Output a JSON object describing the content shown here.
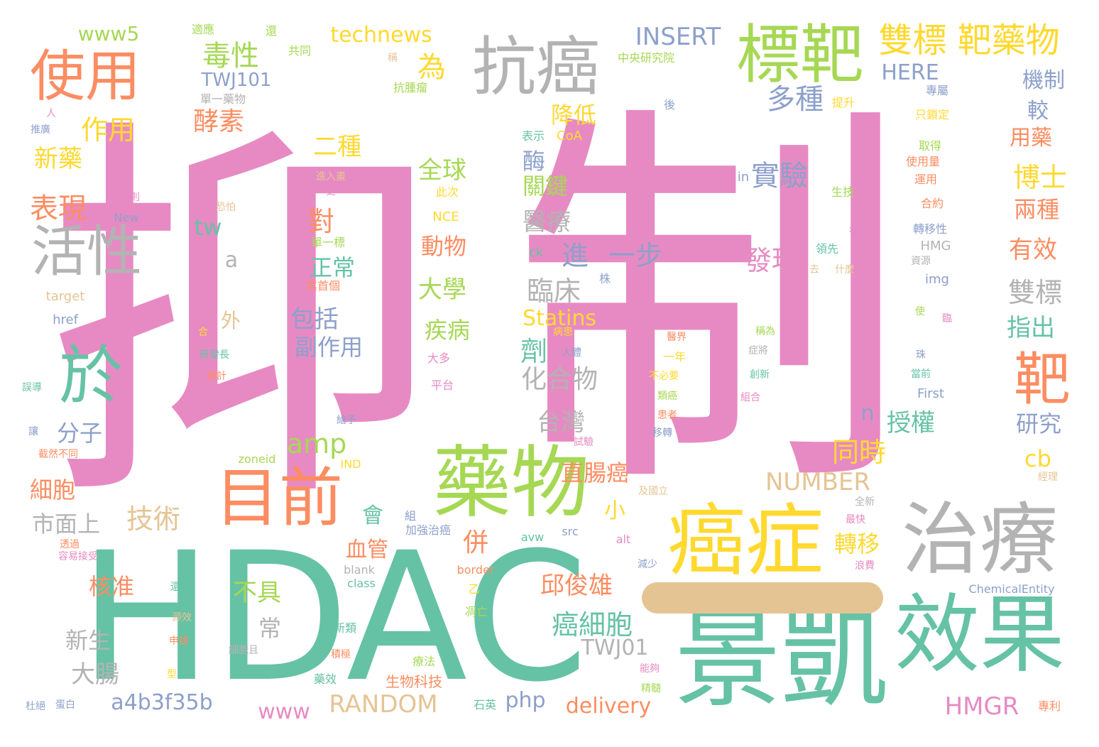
{
  "palette": {
    "teal": "#66c2a5",
    "orange": "#fc8d62",
    "periwinkle": "#8da0cb",
    "pink": "#e78ac3",
    "lime": "#a6d854",
    "yellow": "#ffd92f",
    "tan": "#e5c494",
    "gray": "#b3b3b3"
  },
  "words": {
    "yi": "抑",
    "zhi": "制",
    "hdac": "HDAC",
    "jingkai": "景凱",
    "xiaoguo": "效果",
    "aizheng": "癌症",
    "zhiliao": "治療",
    "yaowu": "藥物",
    "mubiao": "目前",
    "kangai": "抗癌",
    "biaoba": "標靶",
    "shiyong": "使用",
    "huoxing": "活性",
    "yu": "於",
    "ba": "靶",
    "shuangbiao_bayaowu": "雙標 靶藥物",
    "dushu": "毒性",
    "wei": "為",
    "technews": "technews",
    "www5": "www5",
    "insert": "INSERT",
    "twj101": "TWJ101",
    "here": "HERE",
    "duozhong": "多種",
    "jizhi": "機制",
    "zuoyong": "作用",
    "meisu": "酵素",
    "jiangdi": "降低",
    "jiao": "較",
    "xinyao": "新藥",
    "erzhong": "二種",
    "shiyan": "實驗",
    "yongyao": "用藥",
    "boshi": "博士",
    "biaoxian": "表現",
    "quanqiu": "全球",
    "mei": "酶",
    "guanjian": "關鍵",
    "liangzhong": "兩種",
    "tw": "tw",
    "dui": "對",
    "yiliao": "醫療",
    "youxiao": "有效",
    "fazhan": "發現",
    "jin": "進",
    "yibu": "一步",
    "dongwu": "動物",
    "zhengchang": "正常",
    "a": "a",
    "linchuang": "臨床",
    "shuangbiao": "雙標",
    "daxue": "大學",
    "baokuo": "包括",
    "statins": "Statins",
    "zhichu": "指出",
    "wai": "外",
    "jibing": "疾病",
    "ji": "劑",
    "fuzuoyong": "副作用",
    "huahewu": "化合物",
    "fenzi": "分子",
    "taiwan": "台灣",
    "n": "n",
    "shouquan": "授權",
    "yanjiu": "研究",
    "amp": "amp",
    "tongshi": "同時",
    "cb": "cb",
    "xibao": "細胞",
    "zhichangai": "直腸癌",
    "number": "NUMBER",
    "jishu": "技術",
    "xiao": "小",
    "shimianshang": "市面上",
    "hui": "會",
    "bing": "併",
    "xueguan": "血管",
    "zhuanyi": "轉移",
    "hezhun": "核准",
    "bujiu": "不具",
    "qiujunxiong": "邱俊雄",
    "aixibao": "癌細胞",
    "chang": "常",
    "xinsheng": "新生",
    "twj01": "TWJ01",
    "dachang": "大腸",
    "a4b3f35b": "a4b3f35b",
    "random": "RANDOM",
    "www": "www",
    "php": "php",
    "delivery": "delivery",
    "hmgr": "HMGR",
    "shiying": "適應",
    "huan": "還",
    "gongtong": "共同",
    "cheng": "稱",
    "kangzhongliu": "抗腫瘤",
    "danyi_yaowu": "單一藥物",
    "zhongyang": "中央研究院",
    "hou": "後",
    "tisheng": "提升",
    "zhuanshu": "專屬",
    "zhisuoding": "只鎖定",
    "ren": "人",
    "tuiguang": "推廣",
    "biaoshi": "表示",
    "coa": "CoA",
    "qude": "取得",
    "shiyongliang": "使用量",
    "jinrusheng": "進入畫",
    "fuhe": "符合",
    "geng": "更",
    "qianding": "簽定",
    "in": "in",
    "shengji": "生技",
    "yunyong": "運用",
    "heyue": "合約",
    "xibaoze": "細胞則",
    "cici": "此次",
    "kongpa": "恐怕",
    "new": "New",
    "nce": "NCE",
    "bei": "被",
    "zhuanyixing": "轉移性",
    "danyibiao": "單一標",
    "ck": "ck",
    "lingxian": "領先",
    "hmg": "HMG",
    "ziyuan": "資源",
    "qu": "去",
    "shenme": "什麼",
    "qishouge": "其首個",
    "zhu": "株",
    "img": "img",
    "target": "target",
    "shi": "使",
    "lin": "臨",
    "href": "href",
    "he": "合",
    "huanzhe_yi": "病患",
    "renti": "人體",
    "yijie": "醫界",
    "chengwei": "稱為",
    "zhengjiang": "症將",
    "zhu2": "珠",
    "yanfazhang": "研發長",
    "yiji": "預計",
    "dadao": "大多",
    "yinian": "一年",
    "chuangxin": "創新",
    "dangqian": "當前",
    "wudao": "誤導",
    "pingtai": "平台",
    "bubiyao": "不必要",
    "leiai": "類癌",
    "zuhe": "組合",
    "first": "First",
    "huanzhe": "患者",
    "geiyu": "給予",
    "rang": "讓",
    "yizhuan": "移轉",
    "shiyan2": "試驗",
    "jieranbutong": "截然不同",
    "zoneid": "zoneid",
    "ind": "IND",
    "jiguoli": "及國立",
    "jingli": "經理",
    "quanxin": "全新",
    "zu": "組",
    "zuikuai": "最快",
    "jiaqiang": "加強治癌",
    "tougu": "透過",
    "rongyi": "容易接受",
    "avw": "avw",
    "src": "src",
    "alt": "alt",
    "blank": "blank",
    "border": "border",
    "jianshao": "減少",
    "langfei": "浪費",
    "class": "class",
    "chemical": "ChemicalEntity",
    "huanyuan": "還原",
    "yi2": "乙",
    "yuanxiao": "源效",
    "diaowang": "凋亡",
    "shenqing": "申請",
    "xinlei": "新類",
    "xibaoqie": "細胞且",
    "nenggou": "能夠",
    "jiji": "積極",
    "liaofa": "療法",
    "xing": "型",
    "yaoxiao": "藥效",
    "jingsui": "精髓",
    "shengwu": "生物科技",
    "dubai": "杜絕",
    "danbai": "蛋白",
    "shiying2": "石英",
    "zhuanli": "專利"
  }
}
